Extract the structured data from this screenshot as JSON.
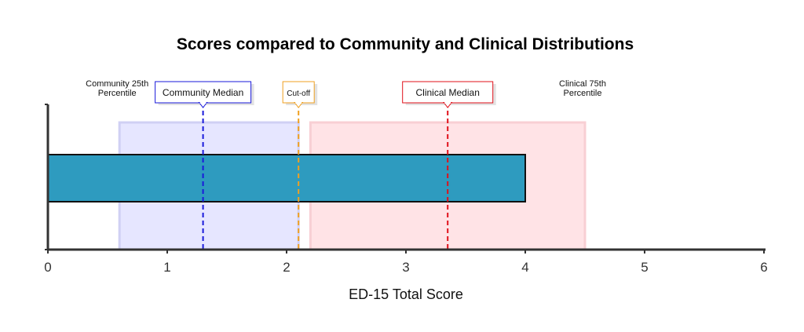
{
  "chart_data": {
    "type": "bar",
    "orientation": "horizontal",
    "title": "Scores compared to Community and Clinical Distributions",
    "xlabel": "ED-15 Total Score",
    "ylabel": "",
    "xlim": [
      0,
      6
    ],
    "xticks": [
      "0",
      "1",
      "2",
      "3",
      "4",
      "5",
      "6"
    ],
    "bar": {
      "value": 4.0,
      "color": "#2e9bbf"
    },
    "bands": [
      {
        "label": "Community",
        "start": 0.6,
        "end": 2.1,
        "color": "#e6e6ff"
      },
      {
        "label": "Clinical",
        "start": 2.2,
        "end": 4.5,
        "color": "#ffe3e6"
      }
    ],
    "reference_lines": [
      {
        "label": "Community Median",
        "value": 1.3,
        "color": "#1a1adb",
        "boxed": true
      },
      {
        "label": "Cut-off",
        "value": 2.1,
        "color": "#f0a020",
        "boxed": true
      },
      {
        "label": "Clinical Median",
        "value": 3.35,
        "color": "#e0101a",
        "boxed": true
      }
    ],
    "annotations": [
      {
        "lines": [
          "Community 25th",
          "Percentile"
        ],
        "value": 0.6
      },
      {
        "lines": [
          "Clinical 75th",
          "Percentile"
        ],
        "value": 4.5
      }
    ],
    "grid": false,
    "legend": "none"
  }
}
